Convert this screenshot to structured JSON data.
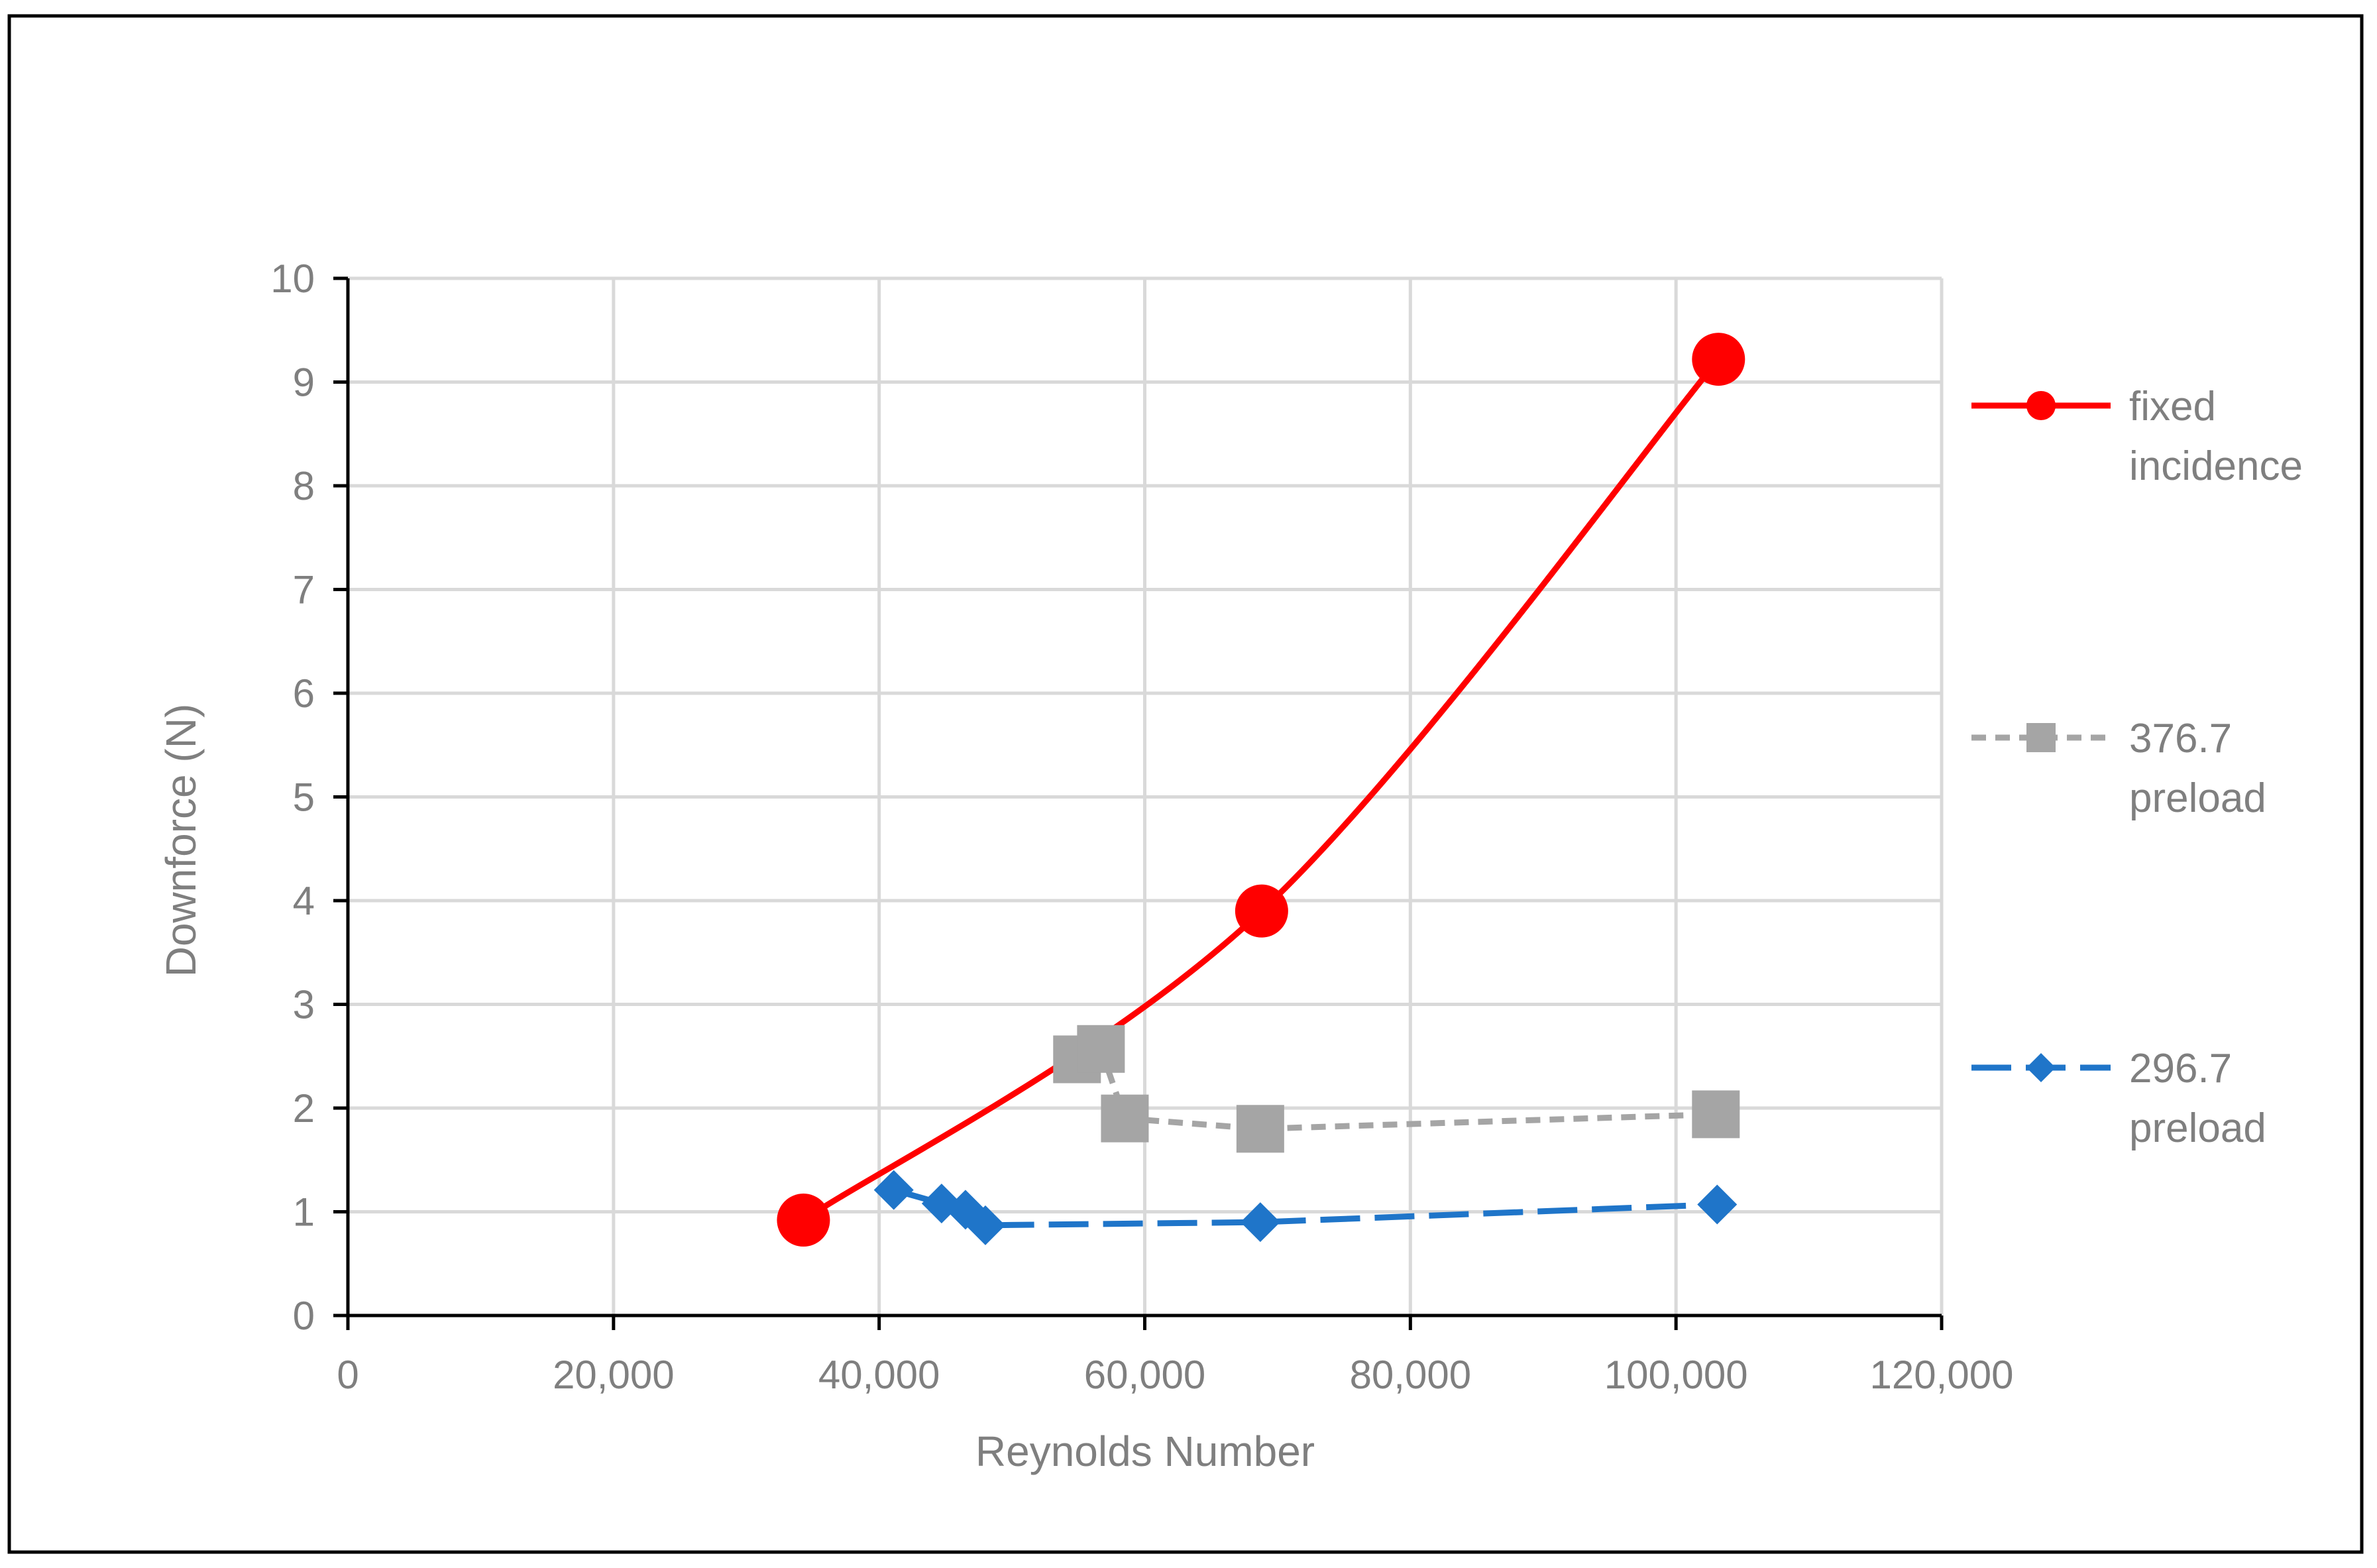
{
  "chart_data": {
    "type": "scatter",
    "title": "",
    "xlabel": "Reynolds Number",
    "ylabel": "Downforce (N)",
    "xlim": [
      0,
      120000
    ],
    "ylim": [
      0,
      10
    ],
    "x_ticks": [
      0,
      20000,
      40000,
      60000,
      80000,
      100000,
      120000
    ],
    "x_tick_labels": [
      "0",
      "20,000",
      "40,000",
      "60,000",
      "80,000",
      "100,000",
      "120,000"
    ],
    "y_ticks": [
      0,
      1,
      2,
      3,
      4,
      5,
      6,
      7,
      8,
      9,
      10
    ],
    "y_tick_labels": [
      "0",
      "1",
      "2",
      "3",
      "4",
      "5",
      "6",
      "7",
      "8",
      "9",
      "10"
    ],
    "grid": true,
    "legend_position": "right",
    "series": [
      {
        "name": "fixed incidence",
        "name_lines": [
          "fixed",
          "incidence"
        ],
        "color": "#ff0000",
        "marker": "circle",
        "line_style": "solid-smooth",
        "points": [
          [
            34300,
            0.92
          ],
          [
            68800,
            3.9
          ],
          [
            103200,
            9.22
          ]
        ]
      },
      {
        "name": "376.7 preload",
        "name_lines": [
          "376.7",
          "preload"
        ],
        "color": "#a5a5a5",
        "marker": "square",
        "line_style": "dashed",
        "points": [
          [
            54900,
            2.47
          ],
          [
            56700,
            2.57
          ],
          [
            58500,
            1.9
          ],
          [
            68700,
            1.8
          ],
          [
            103000,
            1.94
          ]
        ]
      },
      {
        "name": "296.7 preload",
        "name_lines": [
          "296.7",
          "preload"
        ],
        "color": "#1f75c9",
        "marker": "diamond",
        "line_style": "long-dashed",
        "points": [
          [
            41100,
            1.21
          ],
          [
            44700,
            1.08
          ],
          [
            46500,
            1.02
          ],
          [
            48000,
            0.87
          ],
          [
            68700,
            0.9
          ],
          [
            103100,
            1.07
          ]
        ]
      }
    ]
  }
}
